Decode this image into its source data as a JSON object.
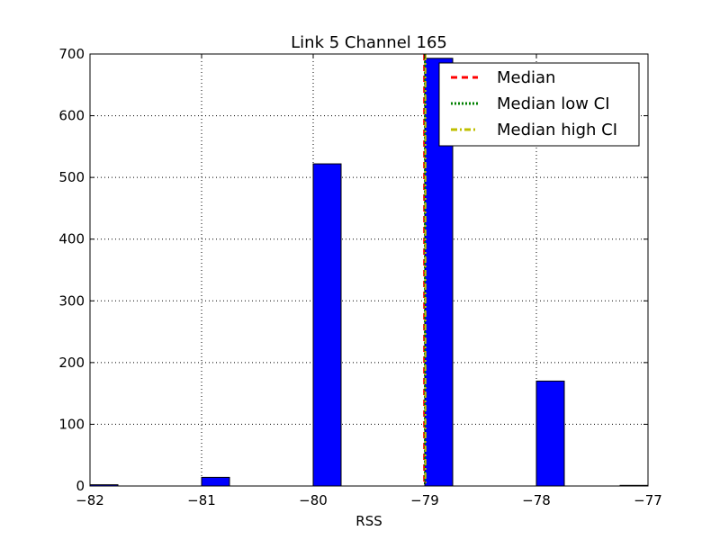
{
  "chart_data": {
    "type": "bar",
    "title": "Link 5 Channel 165",
    "xlabel": "RSS",
    "ylabel": "",
    "xlim": [
      -82,
      -77
    ],
    "ylim": [
      0,
      700
    ],
    "xticks": [
      -82,
      -81,
      -80,
      -79,
      -78,
      -77
    ],
    "xtick_labels": [
      "−82",
      "−81",
      "−80",
      "−79",
      "−78",
      "−77"
    ],
    "yticks": [
      0,
      100,
      200,
      300,
      400,
      500,
      600,
      700
    ],
    "ytick_labels": [
      "0",
      "100",
      "200",
      "300",
      "400",
      "500",
      "600",
      "700"
    ],
    "grid": true,
    "bar_color": "#0000ff",
    "bars": [
      {
        "x0": -82.0,
        "x1": -81.75,
        "value": 2
      },
      {
        "x0": -81.0,
        "x1": -80.75,
        "value": 14
      },
      {
        "x0": -80.0,
        "x1": -79.75,
        "value": 522
      },
      {
        "x0": -79.0,
        "x1": -78.75,
        "value": 693
      },
      {
        "x0": -78.0,
        "x1": -77.75,
        "value": 170
      },
      {
        "x0": -77.25,
        "x1": -77.0,
        "value": 1
      }
    ],
    "vlines": [
      {
        "name": "Median",
        "x": -79,
        "color": "#ff0000",
        "style": "dashed"
      },
      {
        "name": "Median low CI",
        "x": -79,
        "color": "#008000",
        "style": "dotted"
      },
      {
        "name": "Median high CI",
        "x": -79,
        "color": "#bfbf00",
        "style": "dashdot"
      }
    ],
    "legend": {
      "placement": "top-right",
      "entries": [
        "Median",
        "Median low CI",
        "Median high CI"
      ]
    }
  }
}
